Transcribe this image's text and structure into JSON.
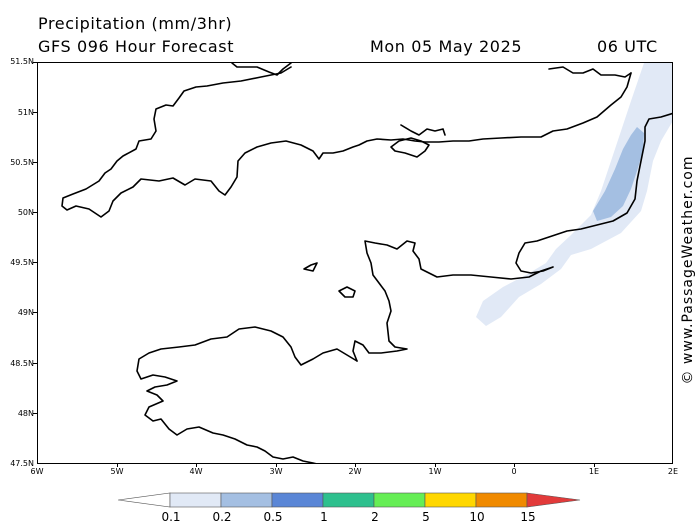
{
  "header": {
    "title": "Precipitation (mm/3hr)",
    "model": "GFS 096 Hour Forecast",
    "valid_date": "Mon 05 May 2025",
    "valid_hour": "06 UTC"
  },
  "map": {
    "lat_labels": [
      "51.5N",
      "51N",
      "50.5N",
      "50N",
      "49.5N",
      "49N",
      "48.5N",
      "48N",
      "47.5N"
    ],
    "lon_labels": [
      "6W",
      "5W",
      "4W",
      "3W",
      "2W",
      "1W",
      "0",
      "1E",
      "2E"
    ],
    "coastline_color": "#000000",
    "precip_shades": [
      "#e1e9f6",
      "#a4bfe2"
    ]
  },
  "watermark": "© www.PassageWeather.com",
  "legend": {
    "labels": [
      "0.1",
      "0.2",
      "0.5",
      "1",
      "2",
      "5",
      "10",
      "15"
    ],
    "colors": [
      "#ffffff",
      "#e1e9f6",
      "#a4bfe2",
      "#5a86d6",
      "#2ec08e",
      "#66ee55",
      "#ffd700",
      "#f08a00",
      "#e23a3a"
    ]
  }
}
